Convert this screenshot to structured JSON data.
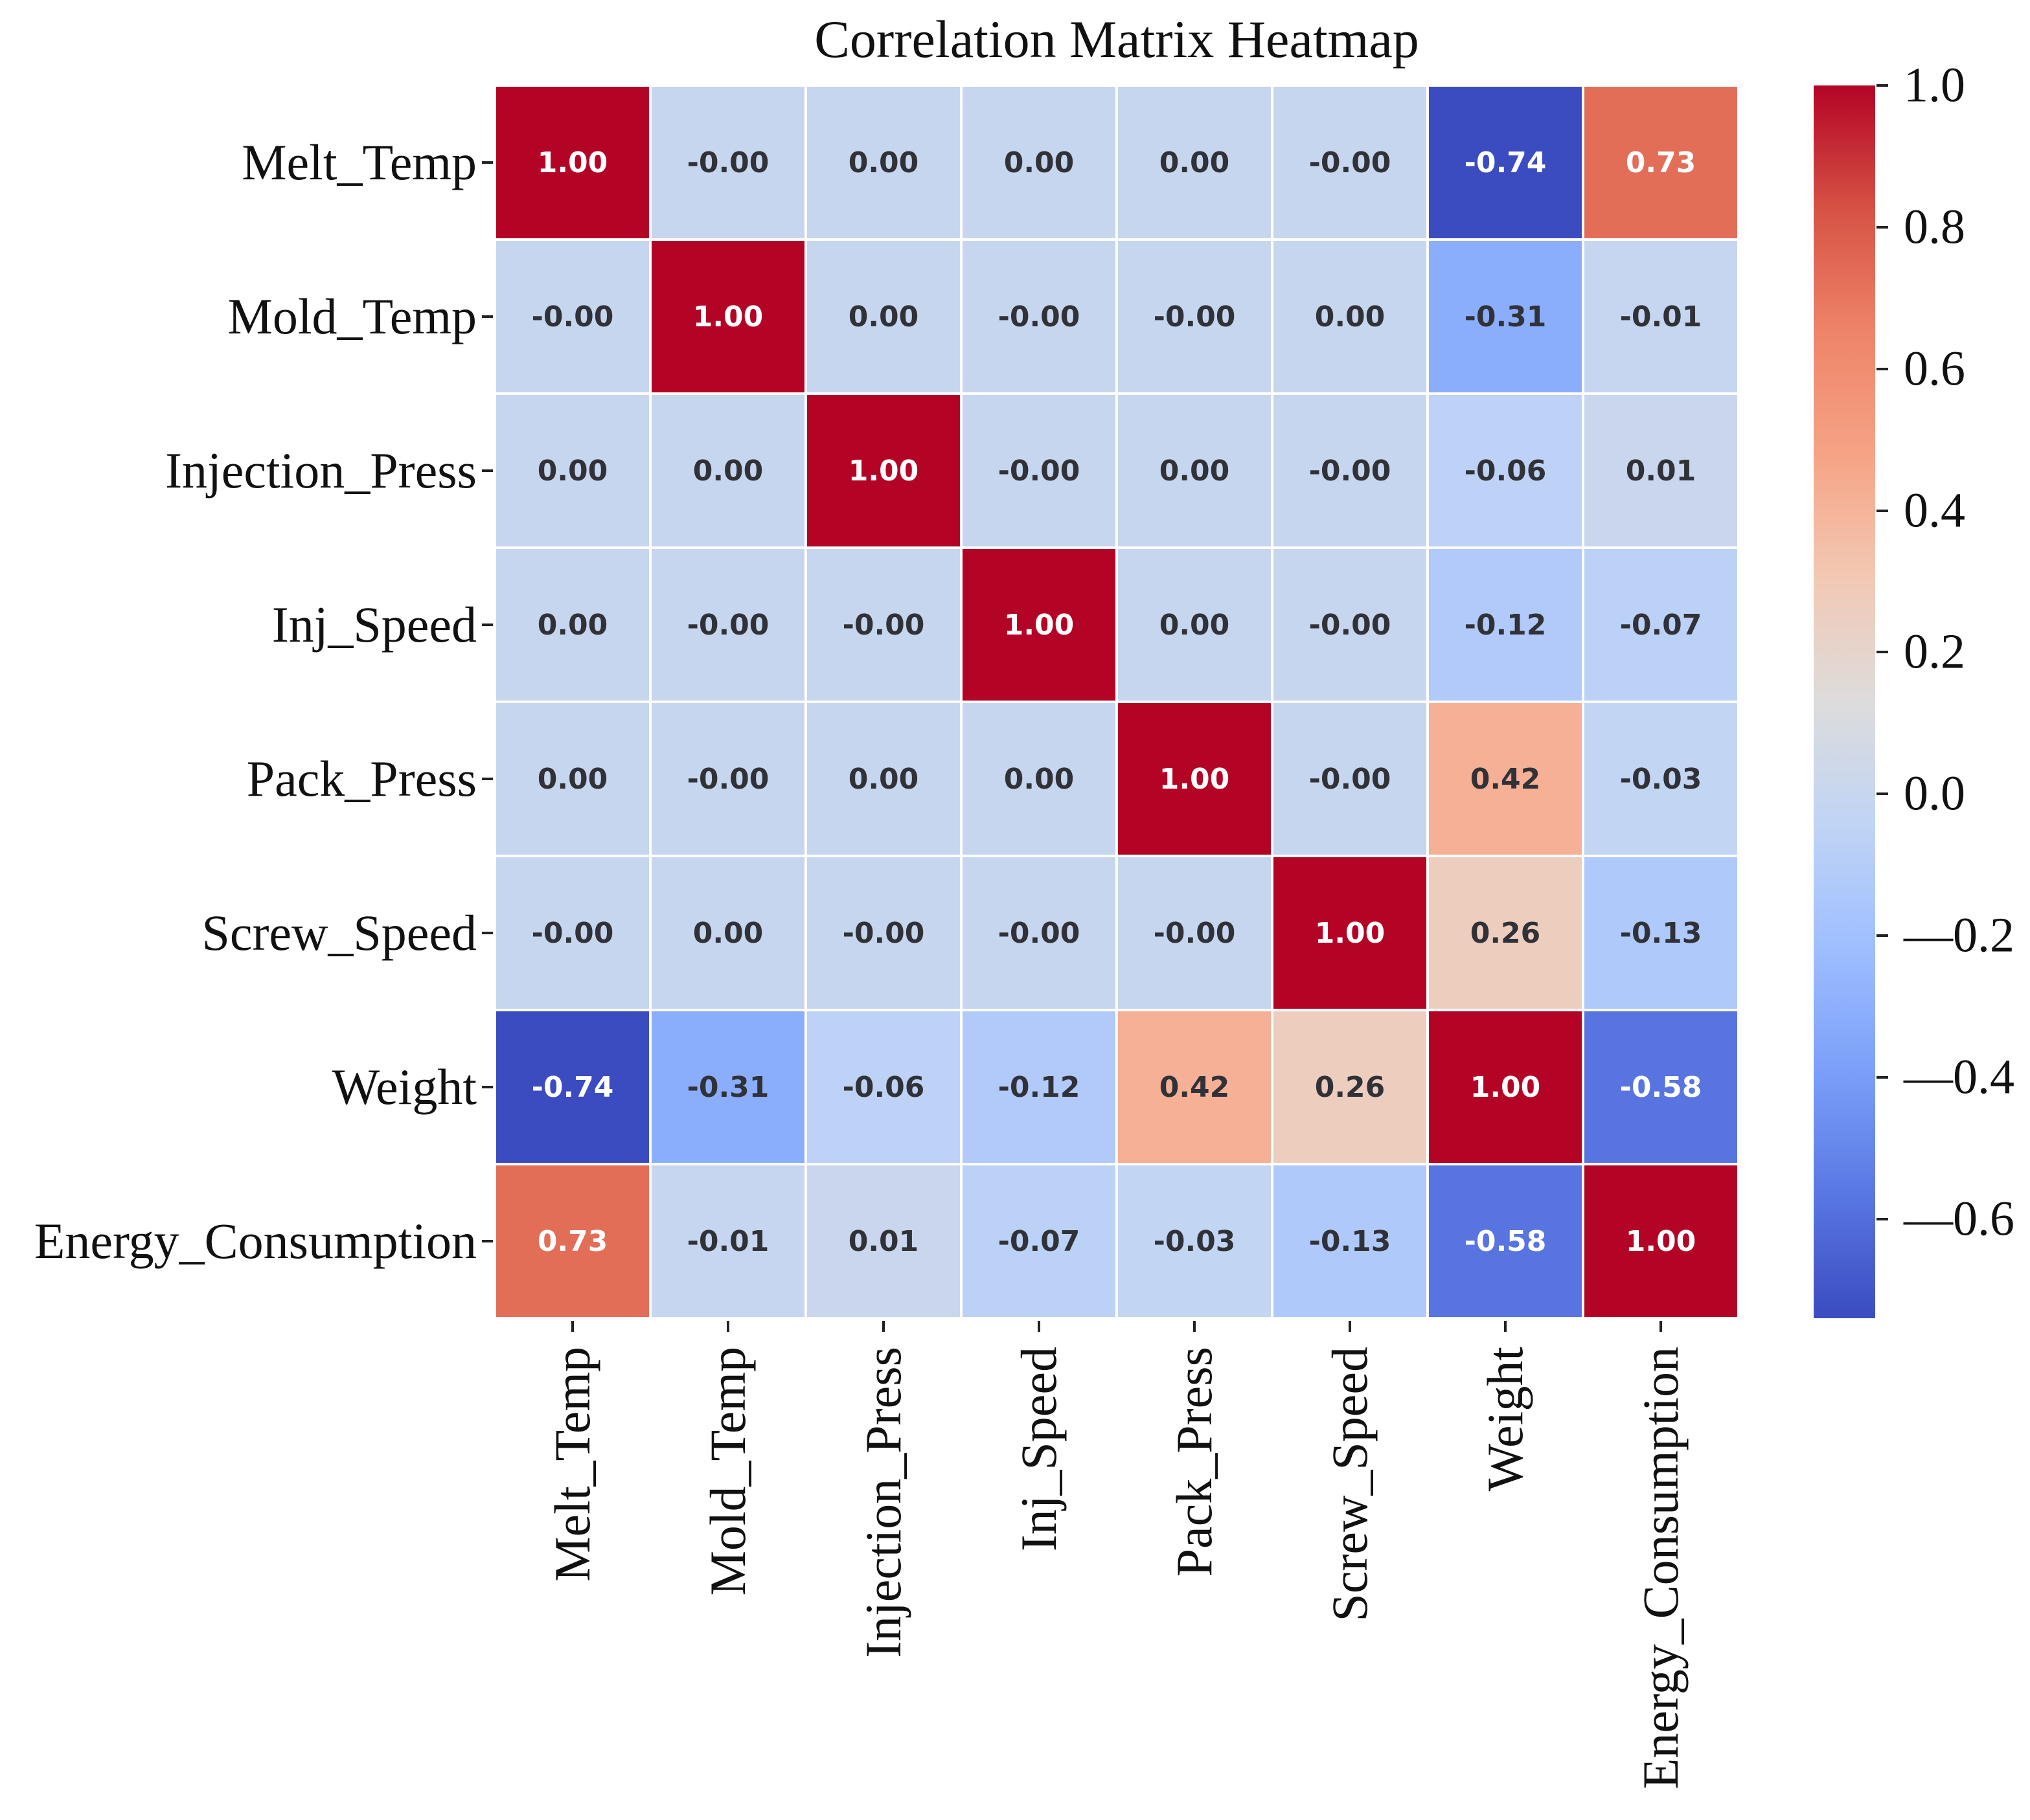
{
  "chart_data": {
    "type": "heatmap",
    "title": "Correlation Matrix Heatmap",
    "variables": [
      "Melt_Temp",
      "Mold_Temp",
      "Injection_Press",
      "Inj_Speed",
      "Pack_Press",
      "Screw_Speed",
      "Weight",
      "Energy_Consumption"
    ],
    "matrix": [
      [
        1.0,
        -0.0,
        0.0,
        0.0,
        0.0,
        -0.0,
        -0.74,
        0.73
      ],
      [
        -0.0,
        1.0,
        0.0,
        -0.0,
        -0.0,
        0.0,
        -0.31,
        -0.01
      ],
      [
        0.0,
        0.0,
        1.0,
        -0.0,
        0.0,
        -0.0,
        -0.06,
        0.01
      ],
      [
        0.0,
        -0.0,
        -0.0,
        1.0,
        0.0,
        -0.0,
        -0.12,
        -0.07
      ],
      [
        0.0,
        -0.0,
        0.0,
        0.0,
        1.0,
        -0.0,
        0.42,
        -0.03
      ],
      [
        -0.0,
        0.0,
        -0.0,
        -0.0,
        -0.0,
        1.0,
        0.26,
        -0.13
      ],
      [
        -0.74,
        -0.31,
        -0.06,
        -0.12,
        0.42,
        0.26,
        1.0,
        -0.58
      ],
      [
        0.73,
        -0.01,
        0.01,
        -0.07,
        -0.03,
        -0.13,
        -0.58,
        1.0
      ]
    ],
    "cell_labels": [
      [
        "1.00",
        "-0.00",
        "0.00",
        "0.00",
        "0.00",
        "-0.00",
        "-0.74",
        "0.73"
      ],
      [
        "-0.00",
        "1.00",
        "0.00",
        "-0.00",
        "-0.00",
        "0.00",
        "-0.31",
        "-0.01"
      ],
      [
        "0.00",
        "0.00",
        "1.00",
        "-0.00",
        "0.00",
        "-0.00",
        "-0.06",
        "0.01"
      ],
      [
        "0.00",
        "-0.00",
        "-0.00",
        "1.00",
        "0.00",
        "-0.00",
        "-0.12",
        "-0.07"
      ],
      [
        "0.00",
        "-0.00",
        "0.00",
        "0.00",
        "1.00",
        "-0.00",
        "0.42",
        "-0.03"
      ],
      [
        "-0.00",
        "0.00",
        "-0.00",
        "-0.00",
        "-0.00",
        "1.00",
        "0.26",
        "-0.13"
      ],
      [
        "-0.74",
        "-0.31",
        "-0.06",
        "-0.12",
        "0.42",
        "0.26",
        "1.00",
        "-0.58"
      ],
      [
        "0.73",
        "-0.01",
        "0.01",
        "-0.07",
        "-0.03",
        "-0.13",
        "-0.58",
        "1.00"
      ]
    ],
    "colormap": {
      "name": "coolwarm",
      "vmin": -0.74,
      "vmax": 1.0,
      "stops_low_to_high": [
        "#3b4cc0",
        "#5977e3",
        "#7b9ff9",
        "#9ebeff",
        "#c0d4f5",
        "#dddcdc",
        "#f2c9b4",
        "#f6a385",
        "#ee8468",
        "#d65244",
        "#b40426"
      ]
    },
    "colorbar": {
      "position": "right",
      "tick_values": [
        1.0,
        0.8,
        0.6,
        0.4,
        0.2,
        0.0,
        -0.2,
        -0.4,
        -0.6
      ],
      "tick_labels": [
        "1.0",
        "0.8",
        "0.6",
        "0.4",
        "0.2",
        "0.0",
        "—0.2",
        "—0.4",
        "—0.6"
      ]
    },
    "annotation_text": {
      "light_color": "#ffffff",
      "dark_color": "#303238",
      "light_threshold_abs_value": 0.5
    },
    "grid_line_color": "#ffffff",
    "background_color": "#ffffff"
  }
}
